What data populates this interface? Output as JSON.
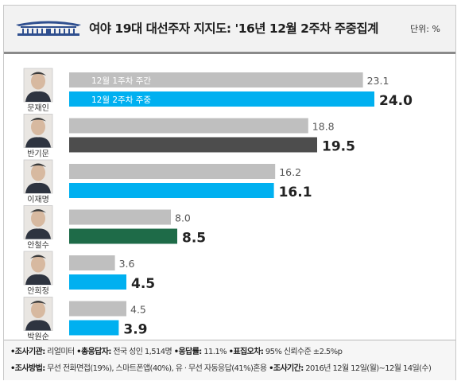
{
  "header": {
    "title": "여야 19대 대선주자 지지도: '16년 12월 2주차 주중집계",
    "unit": "단위: %"
  },
  "chart_data": {
    "type": "bar",
    "orientation": "horizontal",
    "title": "여야 19대 대선주자 지지도: '16년 12월 2주차 주중집계",
    "categories": [
      "문재인",
      "반기문",
      "이재명",
      "안철수",
      "안희정",
      "박원순"
    ],
    "series": [
      {
        "name": "12월 1주차 주간",
        "values": [
          23.1,
          18.8,
          16.2,
          8.0,
          3.6,
          4.5
        ]
      },
      {
        "name": "12월 2주차 주중",
        "values": [
          24.0,
          19.5,
          16.1,
          8.5,
          4.5,
          3.9
        ]
      }
    ],
    "value_labels": {
      "prev": [
        "23.1",
        "18.8",
        "16.2",
        "8.0",
        "3.6",
        "4.5"
      ],
      "cur": [
        "24.0",
        "19.5",
        "16.1",
        "8.5",
        "4.5",
        "3.9"
      ]
    },
    "xlim": [
      0,
      25
    ],
    "grid": false,
    "legend": "inside-first-bars",
    "colors": {
      "prev": "#bfbfbf",
      "cur": [
        "#00b0f0",
        "#4d4d4d",
        "#00b0f0",
        "#1e6b48",
        "#00b0f0",
        "#00b0f0"
      ]
    }
  },
  "footer": {
    "line1": [
      {
        "label": "•조사기관:",
        "text": " 리얼미터 "
      },
      {
        "label": "•총응답자:",
        "text": " 전국 성인 1,514명 "
      },
      {
        "label": "•응답률:",
        "text": " 11.1% "
      },
      {
        "label": "•표집오차:",
        "text": " 95% 신뢰수준 ±2.5%p"
      }
    ],
    "line2": [
      {
        "label": "•조사방법:",
        "text": " 무선 전화면접(19%), 스마트폰앱(40%), 유 · 무선 자동응답(41%)혼용 "
      },
      {
        "label": "•조사기간:",
        "text": " 2016년 12월 12일(월)~12월 14일(수)"
      }
    ]
  }
}
